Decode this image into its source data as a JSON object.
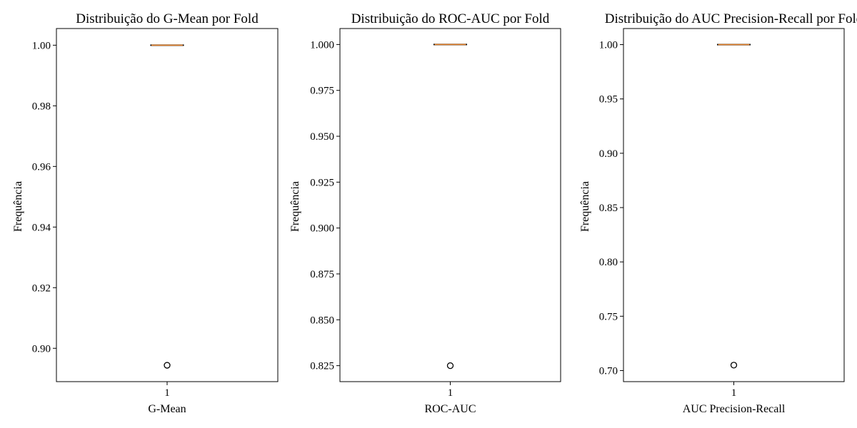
{
  "chart_data": [
    {
      "type": "box",
      "title": "Distribuição do G-Mean por Fold",
      "xlabel": "G-Mean",
      "ylabel": "Frequência",
      "categories": [
        "1"
      ],
      "ylim": [
        0.889,
        1.0055
      ],
      "yticks": [
        0.9,
        0.92,
        0.94,
        0.96,
        0.98,
        1.0
      ],
      "ytick_labels": [
        "0.90",
        "0.92",
        "0.94",
        "0.96",
        "0.98",
        "1.00"
      ],
      "box": {
        "whisker_low": 1.0,
        "q1": 1.0,
        "median": 1.0,
        "q3": 1.0,
        "whisker_high": 1.0
      },
      "outliers": [
        0.8944
      ]
    },
    {
      "type": "box",
      "title": "Distribuição do ROC-AUC por Fold",
      "xlabel": "ROC-AUC",
      "ylabel": "Frequência",
      "categories": [
        "1"
      ],
      "ylim": [
        0.8163,
        1.0087
      ],
      "yticks": [
        0.825,
        0.85,
        0.875,
        0.9,
        0.925,
        0.95,
        0.975,
        1.0
      ],
      "ytick_labels": [
        "0.825",
        "0.850",
        "0.875",
        "0.900",
        "0.925",
        "0.950",
        "0.975",
        "1.000"
      ],
      "box": {
        "whisker_low": 1.0,
        "q1": 1.0,
        "median": 1.0,
        "q3": 1.0,
        "whisker_high": 1.0
      },
      "outliers": [
        0.825
      ]
    },
    {
      "type": "box",
      "title": "Distribuição do AUC Precision-Recall por Fold",
      "xlabel": "AUC Precision-Recall",
      "ylabel": "Frequência",
      "categories": [
        "1"
      ],
      "ylim": [
        0.6898,
        1.0148
      ],
      "yticks": [
        0.7,
        0.75,
        0.8,
        0.85,
        0.9,
        0.95,
        1.0
      ],
      "ytick_labels": [
        "0.70",
        "0.75",
        "0.80",
        "0.85",
        "0.90",
        "0.95",
        "1.00"
      ],
      "box": {
        "whisker_low": 1.0,
        "q1": 1.0,
        "median": 1.0,
        "q3": 1.0,
        "whisker_high": 1.0
      },
      "outliers": [
        0.705
      ]
    }
  ],
  "colors": {
    "median": "#e8832a",
    "box": "#000000",
    "outlier": "#000000"
  }
}
